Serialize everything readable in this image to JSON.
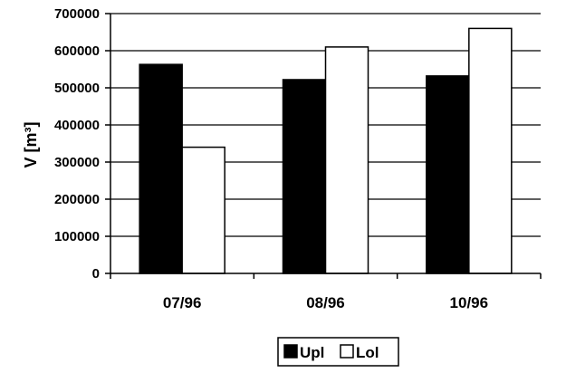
{
  "chart_data": {
    "type": "bar",
    "categories": [
      "07/96",
      "08/96",
      "10/96"
    ],
    "series": [
      {
        "name": "Upl",
        "values": [
          563000,
          522000,
          532000
        ],
        "fill": "#000000"
      },
      {
        "name": "Lol",
        "values": [
          340000,
          610000,
          660000
        ],
        "fill": "#ffffff"
      }
    ],
    "ylabel": "V [m³]",
    "ylim": [
      0,
      700000
    ],
    "yticks": [
      "0",
      "100000",
      "200000",
      "300000",
      "400000",
      "500000",
      "600000",
      "700000"
    ],
    "grid": true,
    "legend_position": "bottom-center"
  }
}
